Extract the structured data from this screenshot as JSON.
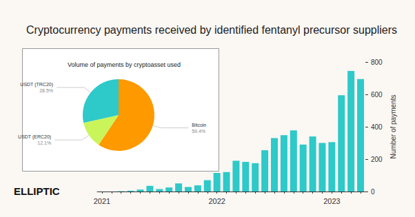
{
  "chart_data": [
    {
      "type": "bar",
      "title": "Cryptocurrency payments received by identified fentanyl precursor suppliers",
      "categories": [
        "2021",
        null,
        null,
        null,
        null,
        null,
        null,
        null,
        null,
        null,
        null,
        null,
        "2022",
        null,
        null,
        null,
        null,
        null,
        null,
        null,
        null,
        null,
        null,
        null,
        "2023",
        null,
        null,
        null
      ],
      "values": [
        0,
        0,
        2,
        5,
        12,
        35,
        15,
        25,
        50,
        28,
        38,
        70,
        115,
        120,
        190,
        183,
        175,
        255,
        330,
        348,
        378,
        290,
        340,
        300,
        305,
        595,
        745,
        695
      ],
      "color": "#2ec9c9",
      "ylabel": "Number of payments",
      "ylim": [
        0,
        800
      ],
      "yticks": [
        0,
        200,
        400,
        600,
        800
      ],
      "grid": false
    },
    {
      "type": "pie",
      "title": "Volume of payments by cryptoasset used",
      "categories": [
        "Bitcoin",
        "USDT (ERC20)",
        "USDT (TRC20)"
      ],
      "values": [
        59.4,
        12.1,
        28.5
      ],
      "value_labels": [
        "59.4%",
        "12.1%",
        "28.5%"
      ],
      "colors": [
        "#ff9900",
        "#c9f55a",
        "#2ec9c9"
      ],
      "data_labels": true
    }
  ],
  "logo": "ELLIPTIC"
}
